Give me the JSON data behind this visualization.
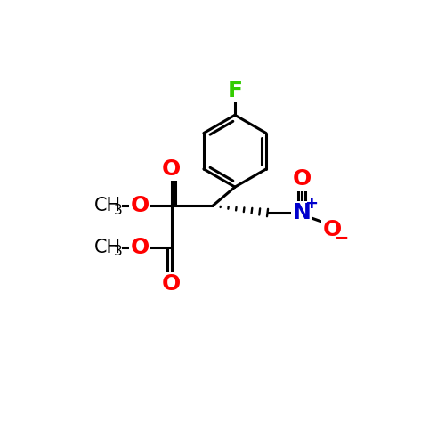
{
  "background_color": "#ffffff",
  "bond_color": "#000000",
  "bond_width": 2.2,
  "atom_colors": {
    "F": "#33cc00",
    "O": "#ff0000",
    "N": "#0000cc",
    "C": "#000000"
  },
  "font_size_atoms": 17,
  "font_size_charges": 12,
  "font_size_methyl": 15,
  "font_size_sub": 11
}
